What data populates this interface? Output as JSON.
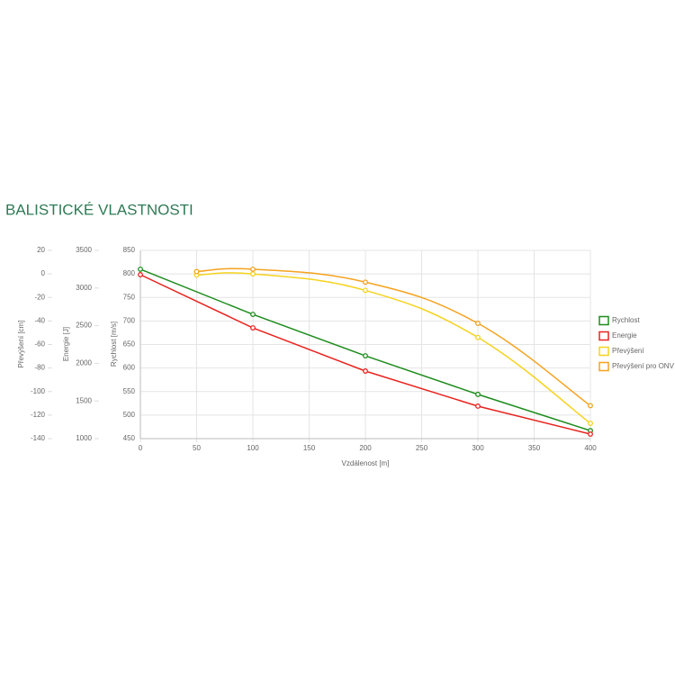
{
  "chart_data": {
    "type": "line",
    "title": "BALISTICKÉ VLASTNOSTI",
    "xlabel": "Vzdálenost [m]",
    "ylabel": "Rychlost [m/s]",
    "y2label": "Energie [J]",
    "y3label": "Převýšení [cm]",
    "xlim": [
      0,
      400
    ],
    "xticks": [
      0,
      50,
      100,
      150,
      200,
      250,
      300,
      350,
      400
    ],
    "ylim": [
      450,
      850
    ],
    "yticks": [
      450,
      500,
      550,
      600,
      650,
      700,
      750,
      800,
      850
    ],
    "y2lim": [
      1000,
      3500
    ],
    "y2ticks": [
      1000,
      1500,
      2000,
      2500,
      3000,
      3500
    ],
    "y3lim": [
      -140,
      20
    ],
    "y3ticks": [
      -140,
      -120,
      -100,
      -80,
      -60,
      -40,
      -20,
      0,
      20
    ],
    "grid": true,
    "legend": "right",
    "series": [
      {
        "name": "Rychlost",
        "color": "#1e8c1e",
        "axis": "y",
        "smooth": false,
        "x": [
          0,
          100,
          200,
          300,
          400
        ],
        "values": [
          810,
          714,
          626,
          544,
          467
        ]
      },
      {
        "name": "Energie",
        "color": "#e8231e",
        "axis": "y2",
        "smooth": false,
        "x": [
          0,
          100,
          200,
          300,
          400
        ],
        "values": [
          3177,
          2471,
          1897,
          1431,
          1060
        ]
      },
      {
        "name": "Převýšení",
        "color": "#f5d31e",
        "axis": "y3",
        "smooth": true,
        "x": [
          50,
          100,
          200,
          300,
          400
        ],
        "values": [
          -1,
          0,
          -14,
          -54,
          -127
        ]
      },
      {
        "name": "Převýšení pro ONV",
        "color": "#f5a21e",
        "axis": "y3",
        "smooth": true,
        "x": [
          50,
          100,
          200,
          300,
          400
        ],
        "values": [
          2,
          4,
          -7,
          -42,
          -112
        ]
      }
    ]
  }
}
